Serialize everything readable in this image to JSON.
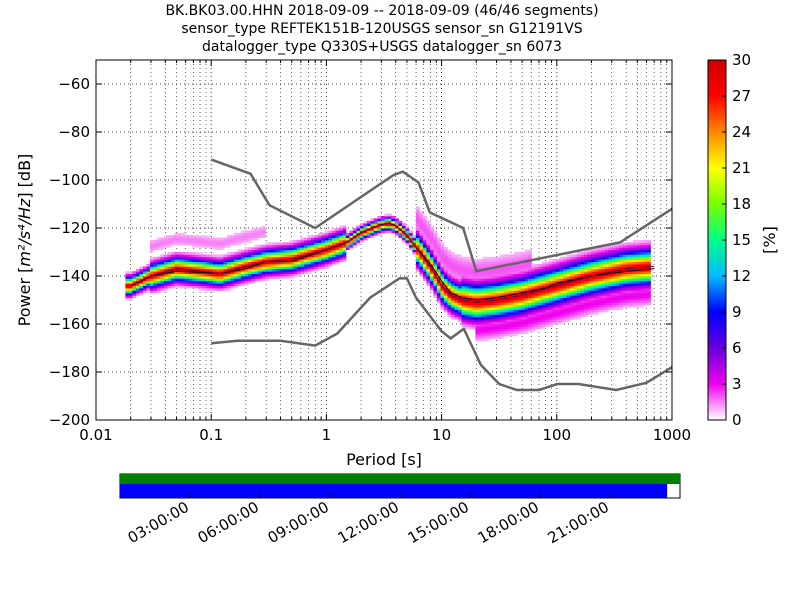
{
  "chart_data": {
    "type": "heatmap",
    "title_lines": [
      "BK.BK03.00.HHN   2018-09-09 -- 2018-09-09  (46/46 segments)",
      "sensor_type REFTEK151B-120USGS sensor_sn G12191VS",
      "datalogger_type Q330S+USGS datalogger_sn 6073"
    ],
    "xlabel": "Period [s]",
    "ylabel_prefix": "Power [",
    "ylabel_units": "m²/s⁴/Hz",
    "ylabel_suffix": "] [dB]",
    "x_scale": "log",
    "xlim": [
      0.01,
      1000
    ],
    "ylim": [
      -200,
      -50
    ],
    "x_ticks": [
      0.01,
      0.1,
      1,
      10,
      100,
      1000
    ],
    "x_tick_labels": [
      "0.01",
      "0.1",
      "1",
      "10",
      "100",
      "1000"
    ],
    "y_ticks": [
      -200,
      -180,
      -160,
      -140,
      -120,
      -100,
      -80,
      -60
    ],
    "y_tick_labels": [
      "−200",
      "−180",
      "−160",
      "−140",
      "−120",
      "−100",
      "−80",
      "−60"
    ],
    "grid": "dotted",
    "colorbar": {
      "label": "[%]",
      "range": [
        0,
        30
      ],
      "ticks": [
        0,
        3,
        6,
        9,
        12,
        15,
        18,
        21,
        24,
        27,
        30
      ],
      "tick_labels": [
        "0",
        "3",
        "6",
        "9",
        "12",
        "15",
        "18",
        "21",
        "24",
        "27",
        "30"
      ],
      "colors": [
        "#ffffff",
        "#ee00ee",
        "#6600dd",
        "#0000ff",
        "#00bbff",
        "#00ff88",
        "#77ff00",
        "#ffff00",
        "#ff8800",
        "#ff0000",
        "#cc0000"
      ]
    },
    "noise_model_high": {
      "period": [
        0.1,
        0.22,
        0.32,
        0.8,
        3.8,
        4.6,
        6.3,
        7.9,
        15.4,
        20,
        354,
        1000
      ],
      "power": [
        -91.5,
        -97.4,
        -110.5,
        -120,
        -98,
        -96.5,
        -101,
        -113.5,
        -120,
        -138,
        -126,
        -112
      ]
    },
    "noise_model_low": {
      "period": [
        0.1,
        0.17,
        0.4,
        0.8,
        1.24,
        2.4,
        4.3,
        5,
        6,
        10,
        12,
        15.6,
        21.9,
        31.6,
        45,
        70,
        101,
        154,
        328,
        600,
        1000
      ],
      "power": [
        -168,
        -167,
        -167,
        -169,
        -164,
        -149,
        -141,
        -141,
        -149,
        -163,
        -166,
        -162,
        -177,
        -185,
        -187.5,
        -187.5,
        -185,
        -185,
        -187.5,
        -184.5,
        -178
      ]
    },
    "median": {
      "period": [
        0.02,
        0.025,
        0.03,
        0.05,
        0.08,
        0.12,
        0.2,
        0.3,
        0.5,
        1,
        1.5,
        2,
        2.5,
        3,
        3.5,
        4,
        5,
        6,
        8,
        10,
        12,
        15,
        20,
        30,
        50,
        80,
        100,
        200,
        400,
        700
      ],
      "power": [
        -144,
        -142,
        -140,
        -138,
        -138.5,
        -139,
        -137,
        -134,
        -134,
        -129,
        -126,
        -122,
        -120,
        -118.5,
        -118,
        -119,
        -123,
        -128,
        -135,
        -142,
        -147,
        -149,
        -150,
        -149,
        -147,
        -145,
        -143,
        -140,
        -138,
        -137
      ]
    },
    "mode": {
      "period": [
        0.02,
        0.03,
        0.05,
        0.08,
        0.12,
        0.2,
        0.3,
        0.5,
        1,
        1.5,
        2,
        2.5,
        3,
        3.5,
        4,
        5,
        6,
        8,
        10,
        12,
        15,
        20,
        30,
        50,
        100,
        200,
        400,
        700
      ],
      "power": [
        -144,
        -140,
        -137,
        -138,
        -139,
        -136,
        -134,
        -133,
        -129,
        -126,
        -122,
        -120,
        -118.5,
        -118,
        -119,
        -123,
        -128,
        -136,
        -144,
        -148,
        -150,
        -151,
        -150,
        -148,
        -144,
        -140,
        -137,
        -136
      ]
    },
    "time_axis": {
      "tick_labels": [
        "03:00:00",
        "06:00:00",
        "09:00:00",
        "12:00:00",
        "15:00:00",
        "18:00:00",
        "21:00:00"
      ],
      "coverage_green_fraction": 1.0,
      "coverage_blue_fraction": 0.977
    }
  }
}
